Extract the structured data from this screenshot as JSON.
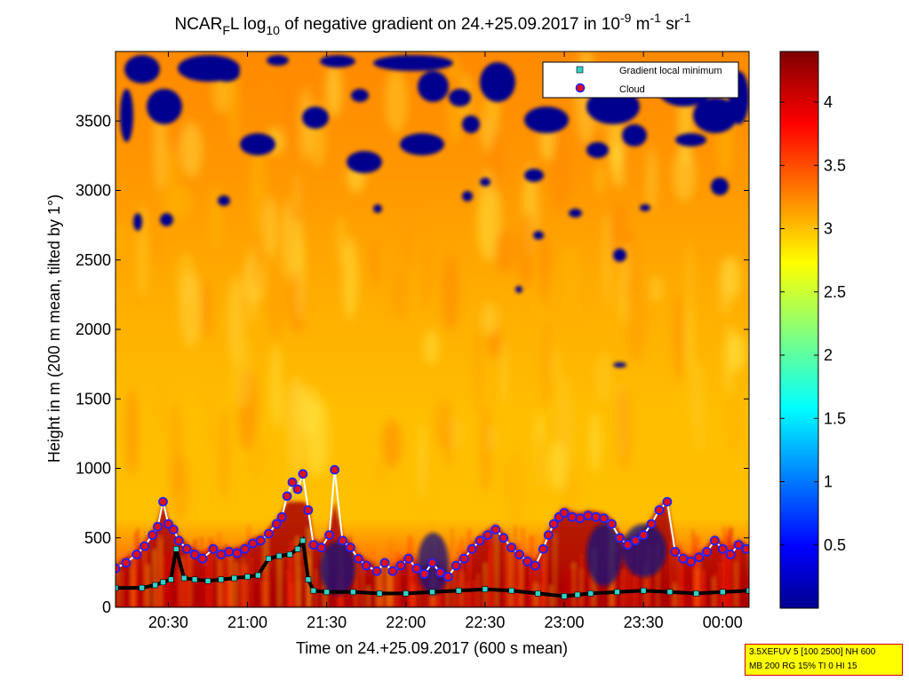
{
  "chart_data": {
    "type": "heatmap",
    "title": {
      "prefix": "NCAR",
      "sub1": "F",
      "mid1": "L log",
      "sub2": "10",
      "mid2": " of negative gradient on 24.+25.09.2017 in 10",
      "sup1": "-9",
      "mid3": " m",
      "sup2": "-1",
      "mid4": " sr",
      "sup3": "-1"
    },
    "xlabel": "Time on 24.+25.09.2017 (600 s mean)",
    "ylabel": "Height in m (200 m mean, tilted by 1°)",
    "x_range_minutes": [
      1210,
      1450
    ],
    "x_ticks": [
      {
        "label": "20:30",
        "minutes": 1230
      },
      {
        "label": "21:00",
        "minutes": 1260
      },
      {
        "label": "21:30",
        "minutes": 1290
      },
      {
        "label": "22:00",
        "minutes": 1320
      },
      {
        "label": "22:30",
        "minutes": 1350
      },
      {
        "label": "23:00",
        "minutes": 1380
      },
      {
        "label": "23:30",
        "minutes": 1410
      },
      {
        "label": "00:00",
        "minutes": 1440
      }
    ],
    "y_range": [
      0,
      4000
    ],
    "y_ticks": [
      0,
      500,
      1000,
      1500,
      2000,
      2500,
      3000,
      3500
    ],
    "colorbar": {
      "range": [
        0,
        4.4
      ],
      "ticks": [
        "0.5",
        "1",
        "1.5",
        "2",
        "2.5",
        "3",
        "3.5",
        "4"
      ],
      "tick_values": [
        0.5,
        1,
        1.5,
        2,
        2.5,
        3,
        3.5,
        4
      ],
      "colormap": "jet"
    },
    "legend": {
      "placement": "top-right",
      "entries": [
        {
          "label": "Gradient local minimum",
          "marker": "square",
          "color": "#30d0c8"
        },
        {
          "label": "Cloud",
          "marker": "circle",
          "color": "#e01010",
          "edge": "#2020ff"
        }
      ]
    },
    "gradient_minimum_series": [
      [
        1210,
        140
      ],
      [
        1220,
        140
      ],
      [
        1225,
        160
      ],
      [
        1228,
        180
      ],
      [
        1231,
        200
      ],
      [
        1233,
        420
      ],
      [
        1236,
        210
      ],
      [
        1240,
        200
      ],
      [
        1245,
        190
      ],
      [
        1250,
        200
      ],
      [
        1255,
        210
      ],
      [
        1260,
        220
      ],
      [
        1264,
        230
      ],
      [
        1268,
        350
      ],
      [
        1272,
        370
      ],
      [
        1276,
        380
      ],
      [
        1279,
        420
      ],
      [
        1281,
        480
      ],
      [
        1283,
        200
      ],
      [
        1285,
        120
      ],
      [
        1290,
        110
      ],
      [
        1300,
        110
      ],
      [
        1310,
        100
      ],
      [
        1320,
        100
      ],
      [
        1330,
        110
      ],
      [
        1340,
        120
      ],
      [
        1350,
        130
      ],
      [
        1360,
        120
      ],
      [
        1370,
        100
      ],
      [
        1380,
        80
      ],
      [
        1385,
        90
      ],
      [
        1390,
        100
      ],
      [
        1400,
        110
      ],
      [
        1410,
        120
      ],
      [
        1420,
        110
      ],
      [
        1430,
        100
      ],
      [
        1440,
        110
      ],
      [
        1450,
        120
      ]
    ],
    "cloud_series": [
      [
        1210,
        280
      ],
      [
        1214,
        320
      ],
      [
        1218,
        380
      ],
      [
        1221,
        440
      ],
      [
        1224,
        520
      ],
      [
        1226,
        580
      ],
      [
        1228,
        760
      ],
      [
        1230,
        600
      ],
      [
        1232,
        560
      ],
      [
        1234,
        480
      ],
      [
        1237,
        420
      ],
      [
        1240,
        380
      ],
      [
        1243,
        350
      ],
      [
        1247,
        420
      ],
      [
        1250,
        380
      ],
      [
        1253,
        400
      ],
      [
        1256,
        390
      ],
      [
        1259,
        420
      ],
      [
        1262,
        460
      ],
      [
        1265,
        480
      ],
      [
        1268,
        530
      ],
      [
        1271,
        600
      ],
      [
        1273,
        650
      ],
      [
        1275,
        800
      ],
      [
        1277,
        900
      ],
      [
        1279,
        850
      ],
      [
        1281,
        960
      ],
      [
        1283,
        700
      ],
      [
        1285,
        450
      ],
      [
        1288,
        430
      ],
      [
        1291,
        520
      ],
      [
        1293,
        990
      ],
      [
        1296,
        480
      ],
      [
        1299,
        430
      ],
      [
        1302,
        350
      ],
      [
        1305,
        300
      ],
      [
        1309,
        260
      ],
      [
        1312,
        320
      ],
      [
        1315,
        260
      ],
      [
        1318,
        300
      ],
      [
        1321,
        350
      ],
      [
        1324,
        280
      ],
      [
        1327,
        240
      ],
      [
        1330,
        320
      ],
      [
        1333,
        250
      ],
      [
        1336,
        220
      ],
      [
        1339,
        300
      ],
      [
        1342,
        350
      ],
      [
        1345,
        420
      ],
      [
        1348,
        480
      ],
      [
        1351,
        520
      ],
      [
        1354,
        560
      ],
      [
        1357,
        500
      ],
      [
        1360,
        430
      ],
      [
        1363,
        380
      ],
      [
        1366,
        330
      ],
      [
        1369,
        300
      ],
      [
        1372,
        420
      ],
      [
        1374,
        520
      ],
      [
        1376,
        600
      ],
      [
        1378,
        650
      ],
      [
        1380,
        680
      ],
      [
        1383,
        650
      ],
      [
        1386,
        640
      ],
      [
        1389,
        660
      ],
      [
        1392,
        650
      ],
      [
        1395,
        640
      ],
      [
        1398,
        600
      ],
      [
        1401,
        500
      ],
      [
        1404,
        450
      ],
      [
        1407,
        480
      ],
      [
        1410,
        520
      ],
      [
        1413,
        600
      ],
      [
        1416,
        700
      ],
      [
        1419,
        760
      ],
      [
        1422,
        400
      ],
      [
        1425,
        350
      ],
      [
        1428,
        330
      ],
      [
        1431,
        360
      ],
      [
        1434,
        400
      ],
      [
        1437,
        480
      ],
      [
        1440,
        420
      ],
      [
        1443,
        380
      ],
      [
        1446,
        450
      ],
      [
        1449,
        420
      ]
    ]
  },
  "info_box": {
    "line1": "3.5XEFUV 5 [100 2500] NH 600",
    "line2": "MB 200 RG 15% TI 0 HI 15"
  }
}
